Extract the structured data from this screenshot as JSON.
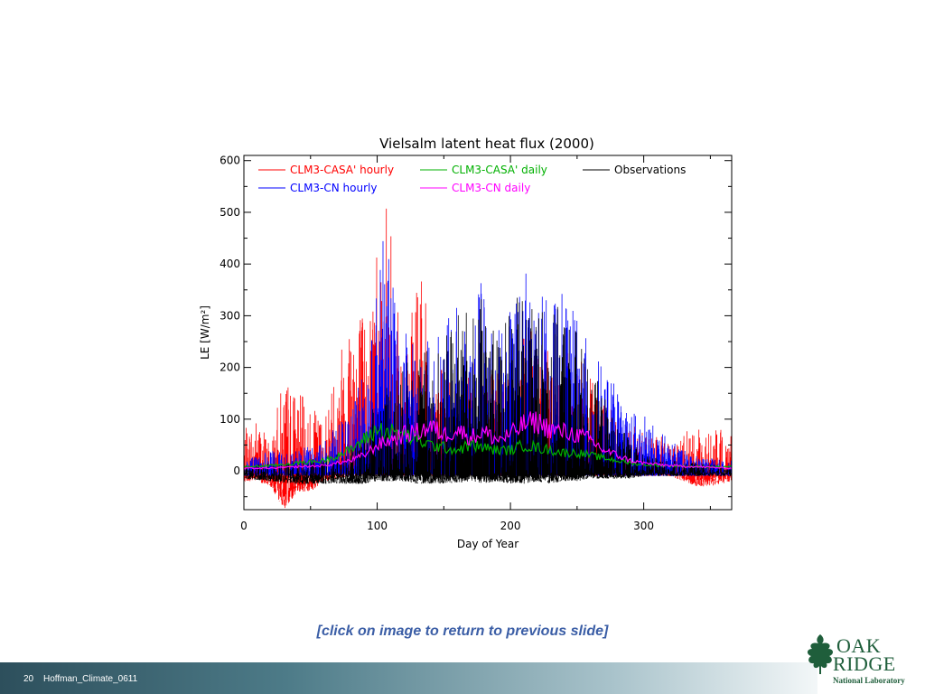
{
  "slide": {
    "caption": "[click on image to return to previous slide]",
    "page_number": "20",
    "footer_text": "Hoffman_Climate_0611",
    "logo": {
      "line1": "OAK",
      "line2": "RIDGE",
      "line3": "National Laboratory",
      "color": "#1f5e3b"
    }
  },
  "chart_data": {
    "type": "line",
    "title": "Vielsalm latent heat flux (2000)",
    "xlabel": "Day of Year",
    "ylabel": "LE [W/m²]",
    "xlim": [
      0,
      366
    ],
    "ylim": [
      -75,
      610
    ],
    "xticks": [
      0,
      100,
      200,
      300
    ],
    "yticks": [
      0,
      100,
      200,
      300,
      400,
      500,
      600
    ],
    "grid": false,
    "legend_position": "top",
    "series": [
      {
        "name": "CLM3-CASA' hourly",
        "color": "#ff0000",
        "kind": "hourly",
        "x": [
          0,
          10,
          20,
          30,
          40,
          50,
          60,
          70,
          80,
          85,
          90,
          95,
          100,
          105,
          110,
          115,
          120,
          125,
          130,
          135,
          140,
          145,
          150,
          160,
          170,
          180,
          190,
          200,
          210,
          220,
          230,
          240,
          250,
          260,
          270,
          280,
          290,
          300,
          310,
          320,
          330,
          340,
          350,
          366
        ],
        "max": [
          80,
          110,
          60,
          190,
          160,
          120,
          110,
          220,
          360,
          380,
          300,
          350,
          530,
          520,
          500,
          350,
          180,
          300,
          380,
          360,
          220,
          200,
          210,
          190,
          210,
          230,
          200,
          230,
          260,
          280,
          250,
          230,
          230,
          180,
          130,
          110,
          90,
          80,
          70,
          60,
          80,
          80,
          80,
          80
        ],
        "min": [
          -20,
          -20,
          -30,
          -75,
          -40,
          -40,
          -20,
          -15,
          -10,
          -10,
          -10,
          -10,
          -10,
          -10,
          -10,
          -10,
          -10,
          -10,
          -10,
          -10,
          -10,
          -10,
          -10,
          -10,
          -10,
          -10,
          -10,
          -10,
          -10,
          -10,
          -10,
          -10,
          -10,
          -10,
          -10,
          -10,
          -10,
          -10,
          -10,
          -10,
          -20,
          -30,
          -30,
          -20
        ]
      },
      {
        "name": "CLM3-CN hourly",
        "color": "#0000ff",
        "kind": "hourly",
        "x": [
          0,
          10,
          20,
          30,
          40,
          50,
          60,
          70,
          80,
          90,
          100,
          105,
          110,
          115,
          120,
          130,
          140,
          150,
          160,
          170,
          180,
          190,
          200,
          210,
          220,
          225,
          230,
          240,
          250,
          260,
          270,
          280,
          290,
          300,
          310,
          320,
          330,
          340,
          350,
          366
        ],
        "max": [
          20,
          30,
          40,
          40,
          40,
          50,
          60,
          90,
          110,
          200,
          400,
          460,
          530,
          300,
          260,
          300,
          250,
          280,
          330,
          310,
          390,
          280,
          310,
          400,
          330,
          350,
          320,
          350,
          300,
          240,
          200,
          160,
          120,
          110,
          80,
          60,
          40,
          30,
          25,
          20
        ],
        "min": [
          -10,
          -10,
          -10,
          -10,
          -10,
          -10,
          -10,
          -10,
          -10,
          -10,
          -10,
          -10,
          -10,
          -10,
          -10,
          -10,
          -10,
          -10,
          -10,
          -10,
          -10,
          -10,
          -10,
          -10,
          -10,
          -10,
          -10,
          -10,
          -10,
          -10,
          -10,
          -10,
          -10,
          -10,
          -10,
          -10,
          -10,
          -10,
          -10,
          -10
        ]
      },
      {
        "name": "Observations",
        "color": "#000000",
        "kind": "hourly",
        "x": [
          0,
          20,
          40,
          60,
          80,
          90,
          100,
          110,
          120,
          130,
          140,
          150,
          160,
          170,
          180,
          190,
          200,
          210,
          220,
          230,
          240,
          250,
          260,
          270,
          280,
          290,
          300,
          320,
          340,
          366
        ],
        "max": [
          10,
          15,
          20,
          25,
          40,
          80,
          140,
          200,
          200,
          260,
          230,
          260,
          320,
          310,
          340,
          270,
          310,
          360,
          340,
          310,
          330,
          280,
          200,
          150,
          90,
          60,
          30,
          20,
          15,
          10
        ],
        "min": [
          -15,
          -20,
          -25,
          -25,
          -25,
          -25,
          -20,
          -20,
          -20,
          -25,
          -25,
          -25,
          -25,
          -20,
          -25,
          -20,
          -25,
          -25,
          -20,
          -25,
          -20,
          -20,
          -15,
          -15,
          -15,
          -15,
          -10,
          -10,
          -10,
          -10
        ]
      },
      {
        "name": "CLM3-CASA' daily",
        "color": "#00b000",
        "kind": "daily",
        "x": [
          0,
          20,
          40,
          60,
          80,
          90,
          100,
          110,
          120,
          130,
          140,
          150,
          160,
          170,
          180,
          190,
          200,
          210,
          220,
          230,
          240,
          250,
          260,
          270,
          280,
          290,
          300,
          320,
          340,
          366
        ],
        "y": [
          8,
          10,
          15,
          20,
          40,
          60,
          80,
          75,
          70,
          60,
          50,
          45,
          40,
          50,
          45,
          40,
          40,
          50,
          45,
          40,
          35,
          35,
          30,
          25,
          20,
          15,
          12,
          10,
          8,
          8
        ]
      },
      {
        "name": "CLM3-CN daily",
        "color": "#ff00ff",
        "kind": "daily",
        "x": [
          0,
          20,
          40,
          60,
          80,
          90,
          100,
          110,
          120,
          130,
          140,
          150,
          160,
          170,
          180,
          190,
          200,
          210,
          220,
          230,
          240,
          250,
          260,
          270,
          280,
          290,
          300,
          320,
          340,
          366
        ],
        "y": [
          5,
          5,
          8,
          10,
          20,
          30,
          50,
          60,
          70,
          75,
          85,
          70,
          80,
          65,
          75,
          60,
          70,
          90,
          95,
          80,
          75,
          70,
          60,
          40,
          30,
          20,
          15,
          10,
          8,
          5
        ]
      }
    ]
  }
}
